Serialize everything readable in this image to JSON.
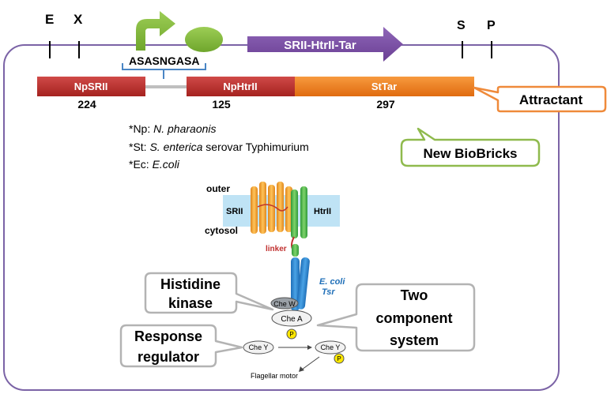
{
  "sites": {
    "e": "E",
    "x": "X",
    "s": "S",
    "p": "P"
  },
  "operon_label": "SRII-HtrII-Tar",
  "linker_seq": "ASASNGASA",
  "genes": [
    {
      "label": "NpSRII",
      "number": "224"
    },
    {
      "label": "NpHtrII",
      "number": "125"
    },
    {
      "label": "StTar",
      "number": "297"
    }
  ],
  "callouts": {
    "attractant": "Attractant",
    "new_biobricks": "New BioBricks",
    "histidine_kinase": [
      "Histidine",
      "kinase"
    ],
    "two_component": [
      "Two",
      "component",
      "system"
    ],
    "response_regulator": [
      "Response",
      "regulator"
    ]
  },
  "abbrev": [
    {
      "key": "*Np:",
      "value": "N. pharaonis",
      "rest": ""
    },
    {
      "key": "*St:",
      "value": "S. enterica",
      "rest": " serovar Typhimurium"
    },
    {
      "key": "*Ec:",
      "value": "E.coli",
      "rest": ""
    }
  ],
  "protein": {
    "outer": "outer",
    "cytosol": "cytosol",
    "srii": "SRII",
    "htrii": "HtrII",
    "linker": "linker",
    "tsr_1": "E. coli",
    "tsr_2": "Tsr",
    "chew": "Che W",
    "chea": "Che A",
    "chey_1": "Che Y",
    "chey_2": "Che Y",
    "p1": "P",
    "p2": "P",
    "motor": "Flagellar motor"
  },
  "colors": {
    "frame": "#7b63a6",
    "gene_red": "#c0302f",
    "gene_orange": "#f0821e",
    "arrow_purple": "#7a4fa3",
    "promoter_green": "#7fb43a",
    "rbs_green": "#84c341",
    "biobrick_border": "#8fba4d",
    "attractant_border": "#ef8a3a"
  }
}
